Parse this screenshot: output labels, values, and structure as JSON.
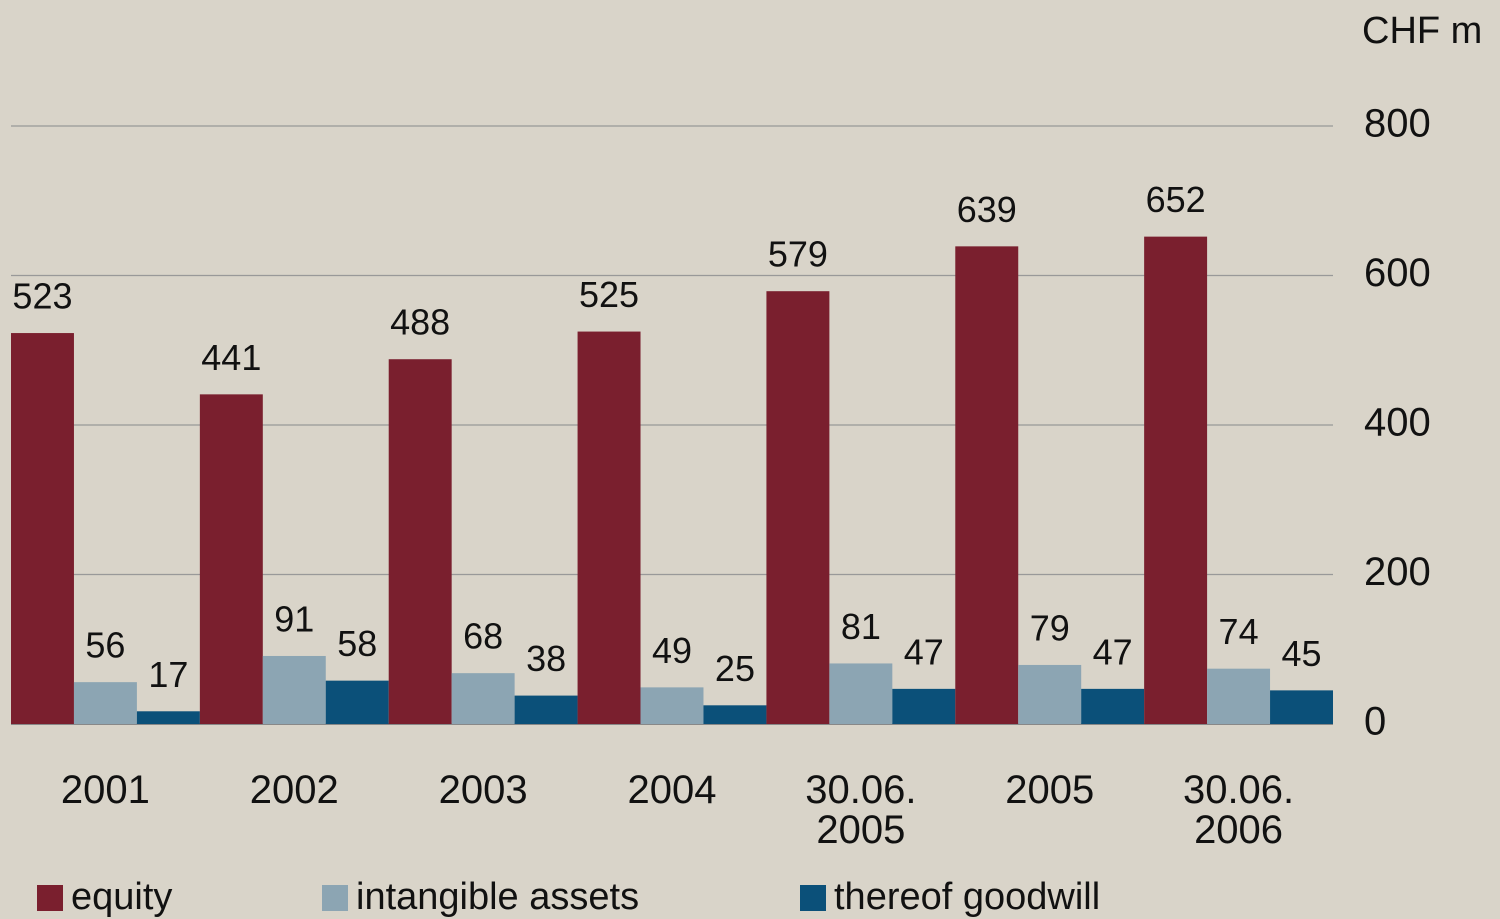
{
  "chart_data": {
    "type": "bar",
    "y_axis_label": "CHF m",
    "categories": [
      "2001",
      "2002",
      "2003",
      "2004",
      "30.06.\n2005",
      "2005",
      "30.06.\n2006"
    ],
    "series": [
      {
        "name": "equity",
        "color": "#7a1f2e",
        "values": [
          523,
          441,
          488,
          525,
          579,
          639,
          652
        ]
      },
      {
        "name": "intangible assets",
        "color": "#8ca5b3",
        "values": [
          56,
          91,
          68,
          49,
          81,
          79,
          74
        ]
      },
      {
        "name": "thereof goodwill",
        "color": "#0b5079",
        "values": [
          17,
          58,
          38,
          25,
          47,
          47,
          45
        ]
      }
    ],
    "ylim": [
      0,
      800
    ],
    "yticks": [
      0,
      200,
      400,
      600,
      800
    ],
    "grid": true,
    "legend": "bottom"
  }
}
